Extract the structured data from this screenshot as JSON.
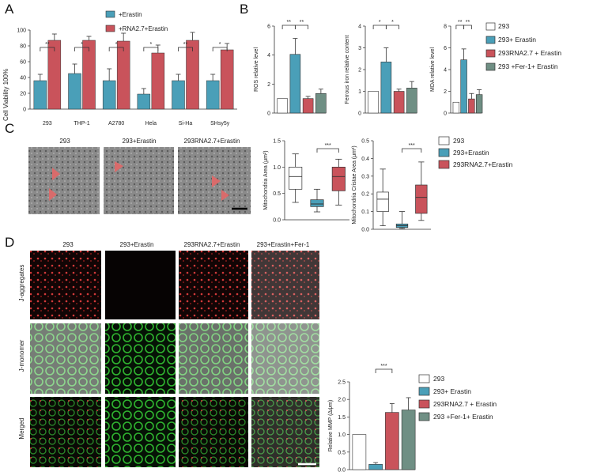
{
  "panels": {
    "A": "A",
    "B": "B",
    "C": "C",
    "D": "D"
  },
  "colors": {
    "control": "#ffffff",
    "erastin": "#4a9fb8",
    "rna": "#c9535b",
    "fer1": "#6f8f84",
    "axis": "#333333"
  },
  "panelA": {
    "legend": [
      "+Erastin",
      "+RNA2.7+Erastin"
    ],
    "ylabel": "Cell Viability 100%",
    "yticks": [
      "0",
      "20",
      "40",
      "60",
      "80",
      "100"
    ],
    "categories": [
      "293",
      "THP-1",
      "A2780",
      "Hela",
      "Si-Ha",
      "SHsy5y"
    ],
    "sig": [
      "**",
      "*",
      "*",
      "*",
      "**",
      "*"
    ]
  },
  "panelB": {
    "legend": [
      "293",
      "293+ Erastin",
      "293RNA2.7 + Erastin",
      "293 +Fer-1+ Erastin"
    ],
    "charts": [
      {
        "ylabel": "ROS relative level",
        "yticks": [
          "0",
          "2",
          "4",
          "6"
        ],
        "sig": [
          "**",
          "**"
        ]
      },
      {
        "ylabel": "Ferrous iron relative content",
        "yticks": [
          "0",
          "1",
          "2",
          "3",
          "4"
        ],
        "sig": [
          "*",
          "*"
        ]
      },
      {
        "ylabel": "MDA relative level",
        "yticks": [
          "0",
          "2",
          "4",
          "6",
          "8"
        ],
        "sig": [
          "**",
          "**"
        ]
      }
    ]
  },
  "panelC": {
    "img_labels": [
      "293",
      "293+Erastin",
      "293RNA2.7+Erastin"
    ],
    "box_legend": [
      "293",
      "293+Erastin",
      "293RNA2.7+Erastin"
    ],
    "box1": {
      "ylabel": "Mitochondria Area (μm²)",
      "yticks": [
        "0.0",
        "0.5",
        "1.0",
        "1.5"
      ],
      "sig": "***"
    },
    "box2": {
      "ylabel": "Mitochondria Cristae Area (μm²)",
      "yticks": [
        "0.0",
        "0.1",
        "0.2",
        "0.3",
        "0.4",
        "0.5"
      ],
      "sig": "***"
    }
  },
  "panelD": {
    "col_labels": [
      "293",
      "293+Erastin",
      "293RNA2.7+Erastin",
      "293+Erastin+Fer-1"
    ],
    "row_labels": [
      "J-aggregates",
      "J-monomer",
      "Merged"
    ],
    "legend": [
      "293",
      "293+ Erastin",
      "293RNA2.7 + Erastin",
      "293 +Fer-1+ Erastin"
    ],
    "ylabel": "Relative MMP (Δψm)",
    "yticks": [
      "0.0",
      "0.5",
      "1.0",
      "1.5",
      "2.0",
      "2.5"
    ],
    "sig": "***"
  },
  "chart_data": [
    {
      "type": "bar",
      "panel": "A",
      "ylabel": "Cell Viability 100%",
      "ylim": [
        0,
        100
      ],
      "categories": [
        "293",
        "THP-1",
        "A2780",
        "Hela",
        "Si-Ha",
        "SHsy5y"
      ],
      "series": [
        {
          "name": "+Erastin",
          "values": [
            36,
            45,
            36,
            19,
            36,
            36
          ],
          "errors": [
            8,
            12,
            15,
            7,
            8,
            8
          ]
        },
        {
          "name": "+RNA2.7+Erastin",
          "values": [
            87,
            87,
            86,
            71,
            87,
            75
          ],
          "errors": [
            8,
            5,
            10,
            10,
            10,
            8
          ]
        }
      ]
    },
    {
      "type": "bar",
      "panel": "B",
      "ylabel": "ROS relative level",
      "ylim": [
        0,
        6
      ],
      "categories": [
        "293",
        "293+ Erastin",
        "293RNA2.7 + Erastin",
        "293 +Fer-1+ Erastin"
      ],
      "values": [
        1.0,
        4.05,
        1.0,
        1.35
      ],
      "errors": [
        0,
        1.1,
        0.15,
        0.3
      ]
    },
    {
      "type": "bar",
      "panel": "B",
      "ylabel": "Ferrous iron relative content",
      "ylim": [
        0,
        4
      ],
      "categories": [
        "293",
        "293+ Erastin",
        "293RNA2.7 + Erastin",
        "293 +Fer-1+ Erastin"
      ],
      "values": [
        1.0,
        2.35,
        1.0,
        1.15
      ],
      "errors": [
        0,
        0.65,
        0.1,
        0.3
      ]
    },
    {
      "type": "bar",
      "panel": "B",
      "ylabel": "MDA relative level",
      "ylim": [
        0,
        8
      ],
      "categories": [
        "293",
        "293+ Erastin",
        "293RNA2.7 + Erastin",
        "293 +Fer-1+ Erastin"
      ],
      "values": [
        1.0,
        4.9,
        1.3,
        1.7
      ],
      "errors": [
        0,
        1.0,
        0.5,
        0.45
      ]
    },
    {
      "type": "box",
      "panel": "C",
      "ylabel": "Mitochondria Area (μm²)",
      "ylim": [
        0,
        1.5
      ],
      "categories": [
        "293",
        "293+Erastin",
        "293RNA2.7+Erastin"
      ],
      "boxes": [
        {
          "min": 0.33,
          "q1": 0.58,
          "median": 0.82,
          "q3": 1.0,
          "max": 1.25
        },
        {
          "min": 0.15,
          "q1": 0.25,
          "median": 0.3,
          "q3": 0.38,
          "max": 0.58
        },
        {
          "min": 0.28,
          "q1": 0.55,
          "median": 0.82,
          "q3": 1.0,
          "max": 1.15
        }
      ]
    },
    {
      "type": "box",
      "panel": "C",
      "ylabel": "Mitochondria Cristae Area (μm²)",
      "ylim": [
        0,
        0.5
      ],
      "categories": [
        "293",
        "293+Erastin",
        "293RNA2.7+Erastin"
      ],
      "boxes": [
        {
          "min": 0.02,
          "q1": 0.1,
          "median": 0.17,
          "q3": 0.21,
          "max": 0.34
        },
        {
          "min": 0.005,
          "q1": 0.01,
          "median": 0.02,
          "q3": 0.03,
          "max": 0.1
        },
        {
          "min": 0.05,
          "q1": 0.09,
          "median": 0.18,
          "q3": 0.25,
          "max": 0.38
        }
      ]
    },
    {
      "type": "bar",
      "panel": "D",
      "ylabel": "Relative MMP (Δψm)",
      "ylim": [
        0,
        2.5
      ],
      "categories": [
        "293",
        "293+ Erastin",
        "293RNA2.7 + Erastin",
        "293 +Fer-1+ Erastin"
      ],
      "values": [
        1.0,
        0.15,
        1.63,
        1.7
      ],
      "errors": [
        0,
        0.05,
        0.25,
        0.35
      ]
    }
  ]
}
